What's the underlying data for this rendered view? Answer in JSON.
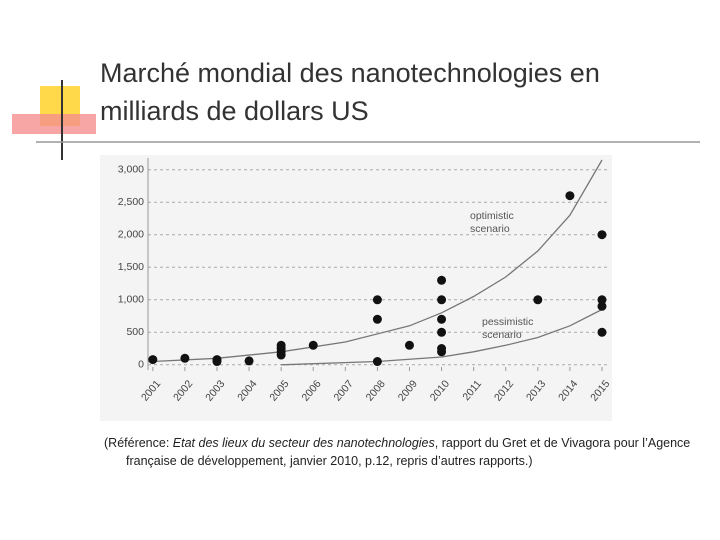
{
  "title": "Marché mondial des nanotechnologies en milliards de dollars US",
  "reference": [
    "(Référence: ",
    "Etat des lieux du secteur des nanotechnologies",
    ", rapport du Gret et de Vivagora pour l’Agence française de développement, janvier 2010, p.12, repris d’autres rapports.)"
  ],
  "chart_data": {
    "type": "scatter",
    "xlim": [
      2000.85,
      2015.25
    ],
    "ylim": [
      -80,
      3180
    ],
    "xticks": [
      2001,
      2002,
      2003,
      2004,
      2005,
      2006,
      2007,
      2008,
      2009,
      2010,
      2011,
      2012,
      2013,
      2014,
      2015
    ],
    "yticks": [
      0,
      500,
      {
        "value": 1000,
        "label": "1,000"
      },
      {
        "value": 1500,
        "label": "1,500"
      },
      {
        "value": 2000,
        "label": "2,000"
      },
      {
        "value": 2500,
        "label": "2,500"
      },
      {
        "value": 3000,
        "label": "3,000"
      }
    ],
    "grid": true,
    "series": [
      {
        "name": "optimistic scenario",
        "type": "line",
        "color": "#777",
        "x": [
          2001,
          2003,
          2005,
          2007,
          2009,
          2010,
          2011,
          2012,
          2013,
          2014,
          2015
        ],
        "values": [
          50,
          100,
          200,
          350,
          600,
          800,
          1050,
          1350,
          1750,
          2300,
          3150
        ]
      },
      {
        "name": "pessimistic scenario",
        "type": "line",
        "color": "#777",
        "x": [
          2005,
          2008,
          2010,
          2011,
          2012,
          2013,
          2014,
          2015
        ],
        "values": [
          0,
          50,
          120,
          200,
          300,
          420,
          600,
          850
        ]
      },
      {
        "type": "scatter",
        "color": "#111",
        "x": [
          2001,
          2002,
          2003,
          2003,
          2004,
          2005,
          2005,
          2005,
          2005,
          2006,
          2008,
          2008,
          2008,
          2009,
          2010,
          2010,
          2010,
          2010,
          2010,
          2010,
          2013,
          2014,
          2015,
          2015,
          2015,
          2015
        ],
        "values": [
          80,
          100,
          50,
          80,
          60,
          150,
          200,
          250,
          300,
          300,
          50,
          700,
          1000,
          300,
          200,
          250,
          500,
          700,
          1000,
          1300,
          1000,
          2600,
          500,
          900,
          1000,
          2000
        ]
      }
    ]
  }
}
